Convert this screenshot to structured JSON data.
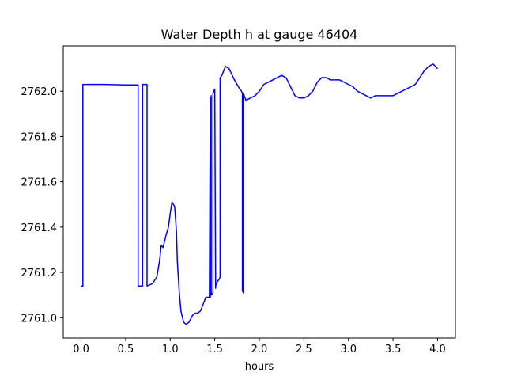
{
  "chart_data": {
    "type": "line",
    "title": "Water Depth h at gauge 46404",
    "xlabel": "hours",
    "ylabel": "",
    "xlim": [
      -0.2,
      4.2
    ],
    "ylim": [
      2760.91,
      2762.2
    ],
    "xticks": [
      0.0,
      0.5,
      1.0,
      1.5,
      2.0,
      2.5,
      3.0,
      3.5,
      4.0
    ],
    "xtick_labels": [
      "0.0",
      "0.5",
      "1.0",
      "1.5",
      "2.0",
      "2.5",
      "3.0",
      "3.5",
      "4.0"
    ],
    "yticks": [
      2761.0,
      2761.2,
      2761.4,
      2761.6,
      2761.8,
      2762.0
    ],
    "ytick_labels": [
      "2761.0",
      "2761.2",
      "2761.4",
      "2761.6",
      "2761.8",
      "2762.0"
    ],
    "grid": false,
    "legend": "none",
    "series": [
      {
        "color": "#0000ff",
        "x": [
          0.0,
          0.02,
          0.02,
          0.25,
          0.5,
          0.64,
          0.64,
          0.69,
          0.69,
          0.74,
          0.74,
          0.8,
          0.85,
          0.88,
          0.9,
          0.92,
          0.95,
          0.98,
          1.0,
          1.02,
          1.05,
          1.07,
          1.08,
          1.1,
          1.12,
          1.15,
          1.18,
          1.21,
          1.25,
          1.28,
          1.31,
          1.34,
          1.37,
          1.4,
          1.44,
          1.45,
          1.45,
          1.46,
          1.46,
          1.48,
          1.48,
          1.49,
          1.5,
          1.51,
          1.51,
          1.53,
          1.55,
          1.56,
          1.56,
          1.58,
          1.62,
          1.66,
          1.72,
          1.78,
          1.8,
          1.81,
          1.81,
          1.82,
          1.82,
          1.83,
          1.85,
          1.9,
          1.95,
          2.0,
          2.05,
          2.1,
          2.15,
          2.2,
          2.25,
          2.3,
          2.35,
          2.4,
          2.45,
          2.5,
          2.55,
          2.6,
          2.65,
          2.7,
          2.75,
          2.8,
          2.85,
          2.9,
          2.95,
          3.0,
          3.05,
          3.1,
          3.15,
          3.2,
          3.25,
          3.3,
          3.35,
          3.4,
          3.45,
          3.5,
          3.55,
          3.6,
          3.65,
          3.7,
          3.75,
          3.8,
          3.85,
          3.9,
          3.95,
          4.0
        ],
        "y": [
          2761.14,
          2761.14,
          2762.03,
          2762.03,
          2762.028,
          2762.028,
          2761.14,
          2761.14,
          2762.03,
          2762.03,
          2761.14,
          2761.15,
          2761.18,
          2761.25,
          2761.32,
          2761.31,
          2761.36,
          2761.4,
          2761.46,
          2761.51,
          2761.49,
          2761.38,
          2761.25,
          2761.12,
          2761.03,
          2760.98,
          2760.97,
          2760.98,
          2761.01,
          2761.02,
          2761.02,
          2761.03,
          2761.06,
          2761.09,
          2761.09,
          2761.97,
          2761.09,
          2761.98,
          2761.1,
          2761.11,
          2761.99,
          2762.0,
          2762.01,
          2761.13,
          2761.14,
          2761.16,
          2761.17,
          2761.18,
          2762.06,
          2762.07,
          2762.11,
          2762.1,
          2762.05,
          2762.01,
          2762.0,
          2761.99,
          2761.12,
          2761.11,
          2761.99,
          2761.98,
          2761.96,
          2761.97,
          2761.98,
          2762.0,
          2762.03,
          2762.04,
          2762.05,
          2762.06,
          2762.07,
          2762.06,
          2762.02,
          2761.98,
          2761.97,
          2761.97,
          2761.98,
          2762.0,
          2762.04,
          2762.06,
          2762.06,
          2762.05,
          2762.05,
          2762.05,
          2762.04,
          2762.03,
          2762.02,
          2762.0,
          2761.99,
          2761.98,
          2761.97,
          2761.98,
          2761.98,
          2761.98,
          2761.98,
          2761.98,
          2761.99,
          2762.0,
          2762.01,
          2762.02,
          2762.03,
          2762.06,
          2762.09,
          2762.11,
          2762.12,
          2762.1
        ]
      }
    ]
  }
}
